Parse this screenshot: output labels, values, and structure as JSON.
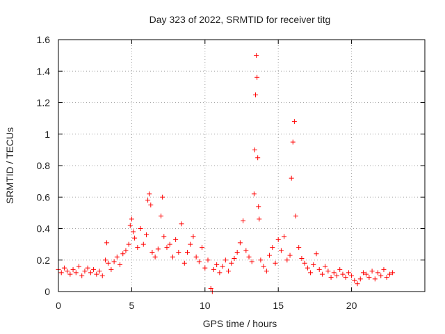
{
  "chart_data": {
    "type": "scatter",
    "title": "Day 323 of 2022, SRMTID for receiver titg",
    "xlabel": "GPS time / hours",
    "ylabel": "SRMTID / TECUs",
    "xlim": [
      0,
      25
    ],
    "ylim": [
      0,
      1.6
    ],
    "xticks": [
      0,
      5,
      10,
      15,
      20
    ],
    "xtick_labels": [
      "0",
      "5",
      "10",
      "15",
      "20"
    ],
    "yticks": [
      0,
      0.2,
      0.4,
      0.6,
      0.8,
      1.0,
      1.2,
      1.4,
      1.6
    ],
    "ytick_labels": [
      "0",
      "0.2",
      "0.4",
      "0.6",
      "0.8",
      "1",
      "1.2",
      "1.4",
      "1.6"
    ],
    "grid": true,
    "marker": "+",
    "color": "#ff0000",
    "series": [
      {
        "name": "titg",
        "x": [
          0.0,
          0.2,
          0.4,
          0.6,
          0.8,
          1.0,
          1.2,
          1.4,
          1.6,
          1.8,
          2.0,
          2.2,
          2.4,
          2.6,
          2.8,
          3.0,
          3.2,
          3.3,
          3.4,
          3.6,
          3.8,
          4.0,
          4.2,
          4.4,
          4.6,
          4.8,
          4.9,
          5.0,
          5.1,
          5.2,
          5.4,
          5.6,
          5.8,
          6.0,
          6.1,
          6.2,
          6.3,
          6.4,
          6.6,
          6.8,
          7.0,
          7.1,
          7.2,
          7.4,
          7.6,
          7.8,
          8.0,
          8.2,
          8.4,
          8.6,
          8.8,
          9.0,
          9.2,
          9.4,
          9.6,
          9.8,
          10.0,
          10.2,
          10.4,
          10.5,
          10.6,
          10.8,
          11.0,
          11.2,
          11.4,
          11.6,
          11.8,
          12.0,
          12.2,
          12.4,
          12.6,
          12.8,
          13.0,
          13.2,
          13.35,
          13.4,
          13.45,
          13.5,
          13.55,
          13.6,
          13.65,
          13.7,
          13.8,
          14.0,
          14.2,
          14.4,
          14.6,
          14.8,
          15.0,
          15.2,
          15.4,
          15.6,
          15.8,
          15.9,
          16.0,
          16.1,
          16.2,
          16.4,
          16.6,
          16.8,
          17.0,
          17.2,
          17.4,
          17.6,
          17.8,
          18.0,
          18.2,
          18.4,
          18.6,
          18.8,
          19.0,
          19.2,
          19.4,
          19.6,
          19.8,
          20.0,
          20.2,
          20.4,
          20.6,
          20.8,
          21.0,
          21.2,
          21.4,
          21.6,
          21.8,
          22.0,
          22.2,
          22.4,
          22.6,
          22.8
        ],
        "y": [
          0.14,
          0.12,
          0.15,
          0.13,
          0.11,
          0.14,
          0.12,
          0.16,
          0.1,
          0.13,
          0.15,
          0.12,
          0.14,
          0.11,
          0.13,
          0.1,
          0.2,
          0.31,
          0.18,
          0.14,
          0.19,
          0.22,
          0.17,
          0.24,
          0.26,
          0.3,
          0.42,
          0.46,
          0.38,
          0.34,
          0.28,
          0.4,
          0.3,
          0.36,
          0.58,
          0.62,
          0.55,
          0.25,
          0.22,
          0.27,
          0.48,
          0.6,
          0.35,
          0.28,
          0.3,
          0.22,
          0.33,
          0.25,
          0.43,
          0.18,
          0.25,
          0.3,
          0.35,
          0.22,
          0.19,
          0.28,
          0.15,
          0.2,
          0.02,
          0.0,
          0.14,
          0.17,
          0.12,
          0.16,
          0.2,
          0.13,
          0.18,
          0.21,
          0.25,
          0.31,
          0.45,
          0.26,
          0.22,
          0.19,
          0.62,
          0.9,
          1.25,
          1.5,
          1.36,
          0.85,
          0.54,
          0.46,
          0.2,
          0.16,
          0.13,
          0.23,
          0.28,
          0.18,
          0.33,
          0.26,
          0.35,
          0.2,
          0.23,
          0.72,
          0.95,
          1.08,
          0.48,
          0.28,
          0.21,
          0.18,
          0.15,
          0.12,
          0.17,
          0.24,
          0.14,
          0.11,
          0.16,
          0.13,
          0.09,
          0.12,
          0.1,
          0.14,
          0.11,
          0.09,
          0.12,
          0.1,
          0.07,
          0.05,
          0.08,
          0.12,
          0.11,
          0.09,
          0.13,
          0.08,
          0.12,
          0.1,
          0.14,
          0.09,
          0.11,
          0.12
        ]
      }
    ]
  }
}
